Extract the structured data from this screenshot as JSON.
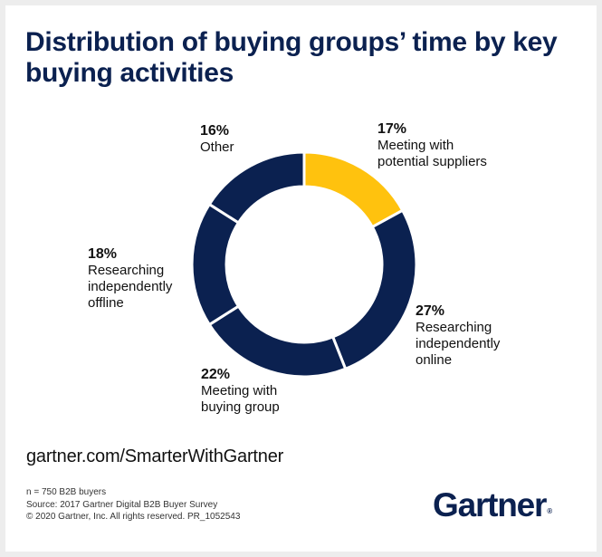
{
  "chart_data": {
    "type": "pie",
    "title": "Distribution of buying groups’ time by key buying activities",
    "slices": [
      {
        "label_lines": "Meeting with\npotential suppliers",
        "label": "Meeting with potential suppliers",
        "value": 17,
        "pct_text": "17%",
        "color": "#ffc20e"
      },
      {
        "label_lines": "Researching\nindependently\nonline",
        "label": "Researching independently online",
        "value": 27,
        "pct_text": "27%",
        "color": "#0b2150"
      },
      {
        "label_lines": "Meeting with\nbuying group",
        "label": "Meeting with buying group",
        "value": 22,
        "pct_text": "22%",
        "color": "#0b2150"
      },
      {
        "label_lines": "Researching\nindependently\noffline",
        "label": "Researching independently offline",
        "value": 18,
        "pct_text": "18%",
        "color": "#0b2150"
      },
      {
        "label_lines": "Other",
        "label": "Other",
        "value": 16,
        "pct_text": "16%",
        "color": "#0b2150"
      }
    ]
  },
  "footer": {
    "url": "gartner.com/SmarterWithGartner",
    "notes": [
      "n = 750 B2B buyers",
      "Source: 2017 Gartner Digital B2B Buyer Survey",
      "© 2020 Gartner, Inc. All rights reserved. PR_1052543"
    ]
  },
  "brand": {
    "logo_text": "Gartner",
    "registered_mark": "®",
    "color": "#0b2150",
    "accent": "#ffc20e"
  }
}
